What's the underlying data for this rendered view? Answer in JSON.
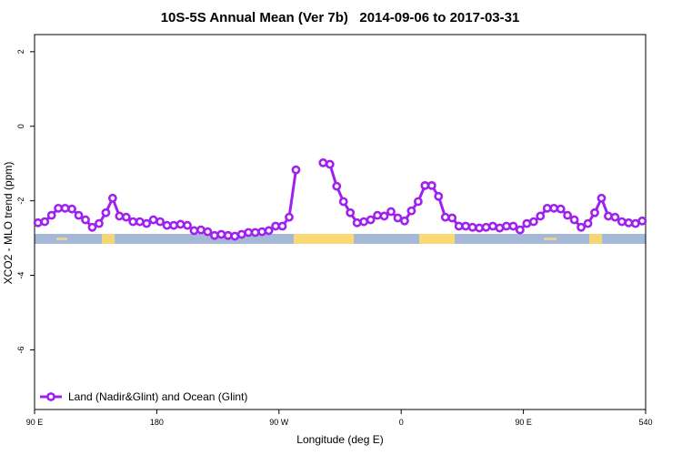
{
  "chart_data": {
    "type": "line",
    "title": "10S-5S Annual Mean (Ver 7b)   2014-09-06 to 2017-03-31",
    "xlabel": "Longitude (deg E)",
    "ylabel": "XCO2 - MLO trend (ppm)",
    "x": [
      92.5,
      97.5,
      102.5,
      107.5,
      112.5,
      117.5,
      122.5,
      127.5,
      132.5,
      137.5,
      142.5,
      147.5,
      152.5,
      157.5,
      162.5,
      167.5,
      172.5,
      177.5,
      182.5,
      187.5,
      192.5,
      197.5,
      202.5,
      207.5,
      212.5,
      217.5,
      222.5,
      227.5,
      232.5,
      237.5,
      242.5,
      247.5,
      252.5,
      257.5,
      262.5,
      267.5,
      272.5,
      277.5,
      282.5,
      287.5,
      292.5,
      297.5,
      302.5,
      307.5,
      312.5,
      317.5,
      322.5,
      327.5,
      332.5,
      337.5,
      342.5,
      347.5,
      352.5,
      357.5,
      362.5,
      367.5,
      372.5,
      377.5,
      382.5,
      387.5,
      392.5,
      397.5,
      402.5,
      407.5,
      412.5,
      417.5,
      422.5,
      427.5,
      432.5,
      437.5,
      442.5,
      447.5,
      452.5,
      457.5,
      462.5,
      467.5,
      472.5,
      477.5,
      482.5,
      487.5,
      492.5,
      497.5,
      502.5,
      507.5,
      512.5,
      517.5,
      522.5,
      527.5,
      532.5,
      537.5
    ],
    "series": [
      {
        "name": "Land (Nadir&Glint) and Ocean (Glint)",
        "color": "#a020f0",
        "values": [
          -2.59,
          -2.56,
          -2.39,
          -2.2,
          -2.2,
          -2.22,
          -2.39,
          -2.51,
          -2.71,
          -2.61,
          -2.32,
          -1.93,
          -2.41,
          -2.44,
          -2.56,
          -2.56,
          -2.61,
          -2.51,
          -2.56,
          -2.66,
          -2.66,
          -2.63,
          -2.66,
          -2.8,
          -2.78,
          -2.83,
          -2.93,
          -2.9,
          -2.93,
          -2.95,
          -2.9,
          -2.85,
          -2.85,
          -2.83,
          -2.8,
          -2.68,
          -2.68,
          -2.44,
          -1.17,
          null,
          null,
          null,
          -0.98,
          -1.02,
          -1.61,
          -2.02,
          -2.32,
          -2.59,
          -2.56,
          -2.51,
          -2.39,
          -2.41,
          -2.29,
          -2.46,
          -2.54,
          -2.27,
          -2.02,
          -1.59,
          -1.59,
          -1.88,
          -2.44,
          -2.46,
          -2.68,
          -2.68,
          -2.71,
          -2.73,
          -2.71,
          -2.68,
          -2.73,
          -2.68,
          -2.68,
          -2.78,
          -2.61,
          -2.56,
          -2.41,
          -2.2,
          -2.2,
          -2.22,
          -2.39,
          -2.51,
          -2.71,
          -2.61,
          -2.32,
          -1.93,
          -2.41,
          -2.44,
          -2.56,
          -2.59,
          -2.61,
          -2.54
        ]
      }
    ],
    "xlim": [
      90,
      540
    ],
    "xticks": [
      {
        "value": 90,
        "label": "90 E"
      },
      180,
      {
        "value": 270,
        "label": "90 W"
      },
      {
        "value": 360,
        "label": "0"
      },
      {
        "value": 450,
        "label": "90 E"
      },
      540
    ],
    "ylim": [
      -7.6,
      2.46
    ],
    "yticks": [
      2,
      0,
      -2,
      -4,
      -6
    ],
    "grid": false,
    "legend": "bottom-left"
  }
}
